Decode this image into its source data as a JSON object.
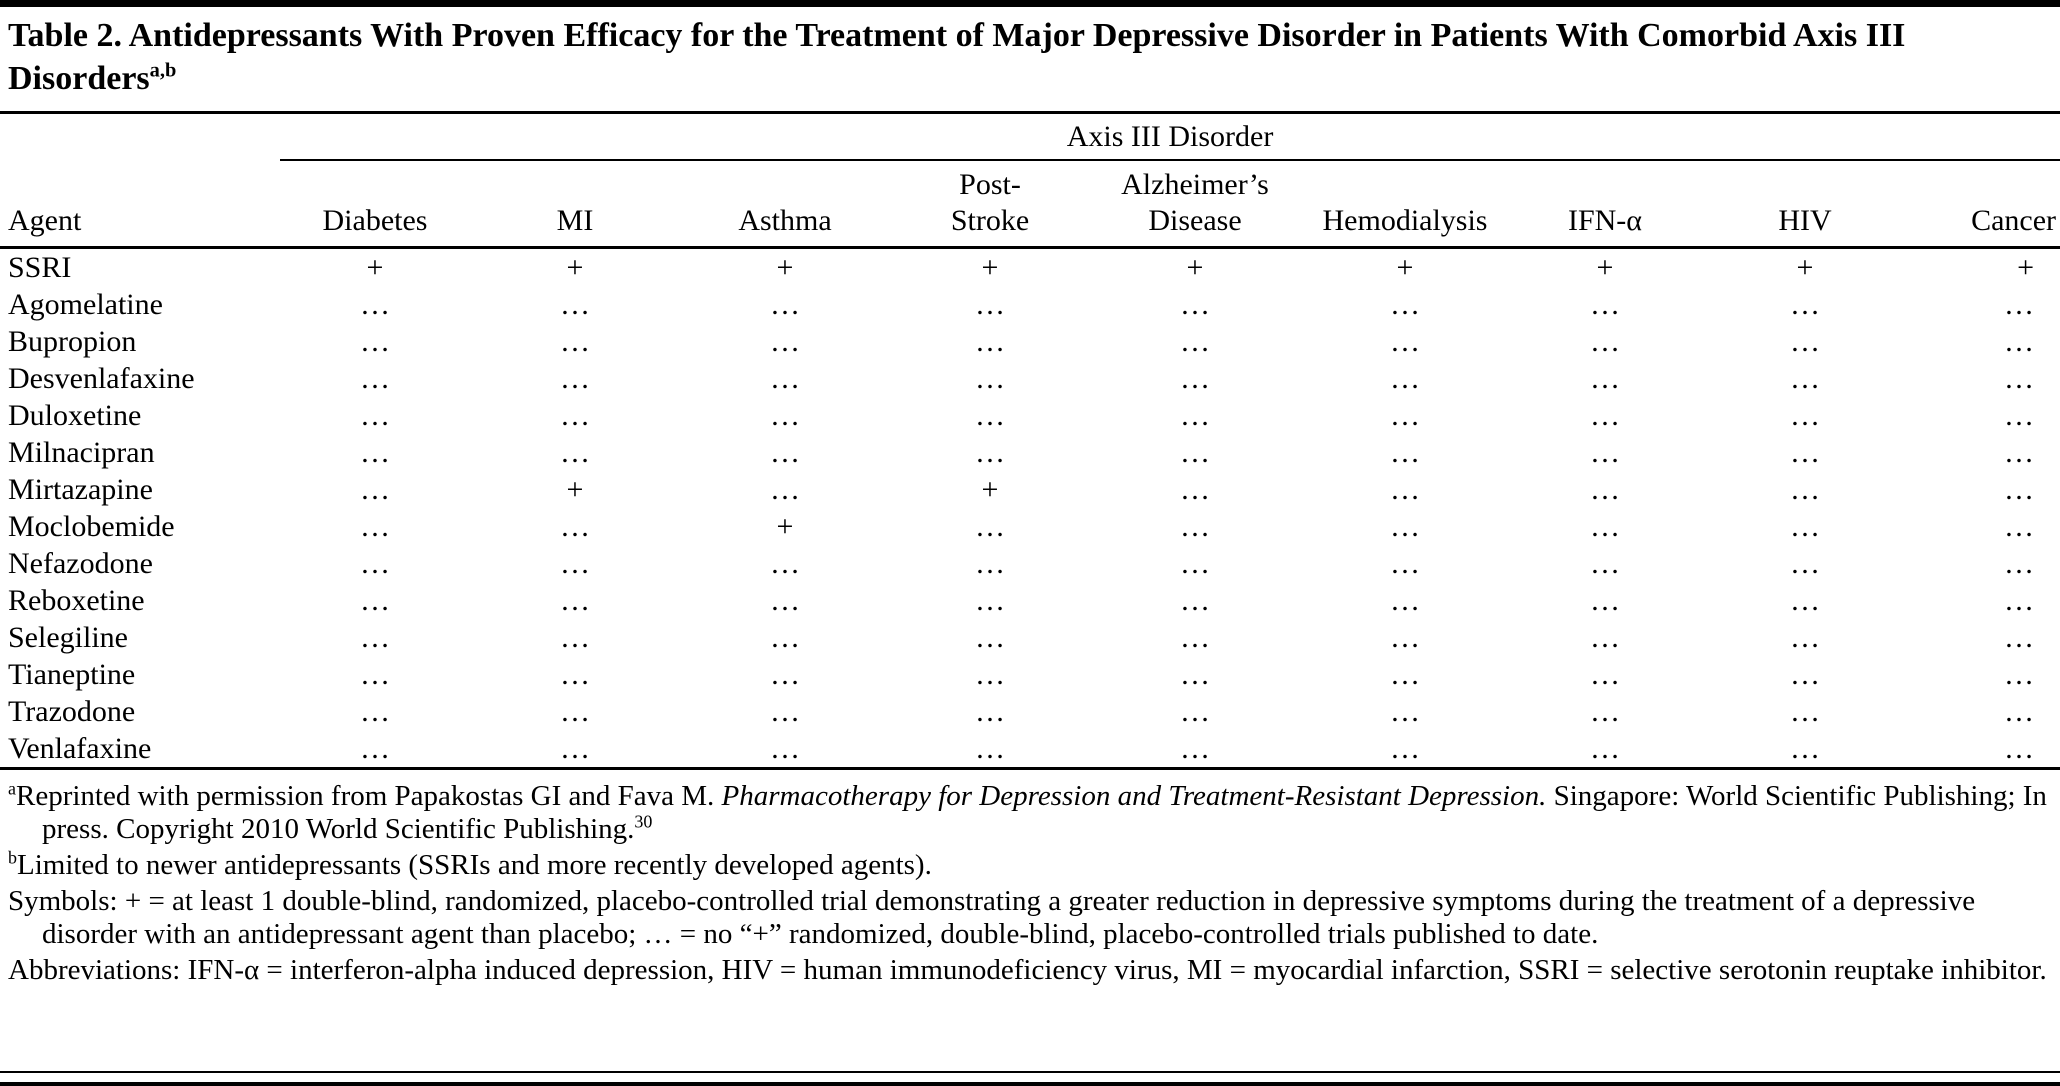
{
  "title": {
    "text": "Table 2. Antidepressants With Proven Efficacy for the Treatment of Major Depressive Disorder in Patients With Comorbid Axis III Disorders",
    "sup": "a,b"
  },
  "table": {
    "span_header": "Axis III Disorder",
    "agent_header": "Agent",
    "columns": [
      {
        "id": "diabetes",
        "lines": [
          "Diabetes"
        ]
      },
      {
        "id": "mi",
        "lines": [
          "MI"
        ]
      },
      {
        "id": "asthma",
        "lines": [
          "Asthma"
        ]
      },
      {
        "id": "post-stroke",
        "lines": [
          "Post-",
          "Stroke"
        ]
      },
      {
        "id": "alzheimers-disease",
        "lines": [
          "Alzheimer’s",
          "Disease"
        ]
      },
      {
        "id": "hemodialysis",
        "lines": [
          "Hemodialysis"
        ]
      },
      {
        "id": "ifn-alpha",
        "lines": [
          "IFN-α"
        ]
      },
      {
        "id": "hiv",
        "lines": [
          "HIV"
        ]
      },
      {
        "id": "cancer",
        "lines": [
          "Cancer"
        ]
      }
    ],
    "rows": [
      {
        "agent": "SSRI",
        "values": [
          "+",
          "+",
          "+",
          "+",
          "+",
          "+",
          "+",
          "+",
          "+"
        ]
      },
      {
        "agent": "Agomelatine",
        "values": [
          "…",
          "…",
          "…",
          "…",
          "…",
          "…",
          "…",
          "…",
          "…"
        ]
      },
      {
        "agent": "Bupropion",
        "values": [
          "…",
          "…",
          "…",
          "…",
          "…",
          "…",
          "…",
          "…",
          "…"
        ]
      },
      {
        "agent": "Desvenlafaxine",
        "values": [
          "…",
          "…",
          "…",
          "…",
          "…",
          "…",
          "…",
          "…",
          "…"
        ]
      },
      {
        "agent": "Duloxetine",
        "values": [
          "…",
          "…",
          "…",
          "…",
          "…",
          "…",
          "…",
          "…",
          "…"
        ]
      },
      {
        "agent": "Milnacipran",
        "values": [
          "…",
          "…",
          "…",
          "…",
          "…",
          "…",
          "…",
          "…",
          "…"
        ]
      },
      {
        "agent": "Mirtazapine",
        "values": [
          "…",
          "+",
          "…",
          "+",
          "…",
          "…",
          "…",
          "…",
          "…"
        ]
      },
      {
        "agent": "Moclobemide",
        "values": [
          "…",
          "…",
          "+",
          "…",
          "…",
          "…",
          "…",
          "…",
          "…"
        ]
      },
      {
        "agent": "Nefazodone",
        "values": [
          "…",
          "…",
          "…",
          "…",
          "…",
          "…",
          "…",
          "…",
          "…"
        ]
      },
      {
        "agent": "Reboxetine",
        "values": [
          "…",
          "…",
          "…",
          "…",
          "…",
          "…",
          "…",
          "…",
          "…"
        ]
      },
      {
        "agent": "Selegiline",
        "values": [
          "…",
          "…",
          "…",
          "…",
          "…",
          "…",
          "…",
          "…",
          "…"
        ]
      },
      {
        "agent": "Tianeptine",
        "values": [
          "…",
          "…",
          "…",
          "…",
          "…",
          "…",
          "…",
          "…",
          "…"
        ]
      },
      {
        "agent": "Trazodone",
        "values": [
          "…",
          "…",
          "…",
          "…",
          "…",
          "…",
          "…",
          "…",
          "…"
        ]
      },
      {
        "agent": "Venlafaxine",
        "values": [
          "…",
          "…",
          "…",
          "…",
          "…",
          "…",
          "…",
          "…",
          "…"
        ]
      }
    ]
  },
  "footnotes": [
    {
      "marker": "a",
      "segments": [
        {
          "text": "Reprinted with permission from Papakostas GI and Fava M. "
        },
        {
          "text": "Pharmacotherapy for Depression and Treatment-Resistant Depression.",
          "style": "italic"
        },
        {
          "text": " Singapore: World Scientific Publishing; In press. Copyright 2010 World Scientific Publishing."
        },
        {
          "text": "30",
          "style": "sup"
        }
      ]
    },
    {
      "marker": "b",
      "segments": [
        {
          "text": "Limited to newer antidepressants (SSRIs and more recently developed agents)."
        }
      ]
    },
    {
      "marker": "",
      "segments": [
        {
          "text": "Symbols: + = at least 1 double-blind, randomized, placebo-controlled trial demonstrating a greater reduction in depressive symptoms during the treatment of a depressive disorder with an antidepressant agent than placebo; … = no “+” randomized, double-blind, placebo-controlled trials published to date."
        }
      ]
    },
    {
      "marker": "",
      "segments": [
        {
          "text": "Abbreviations:  IFN-α = interferon-alpha induced depression, HIV = human immunodeficiency virus, MI = myocardial infarction, SSRI = selective serotonin reuptake inhibitor."
        }
      ]
    }
  ]
}
